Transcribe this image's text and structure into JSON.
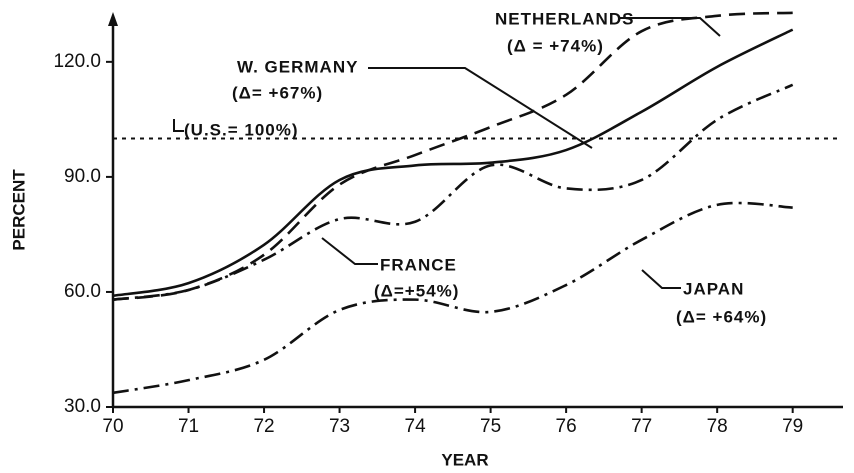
{
  "chart_data": {
    "type": "line",
    "x_label": "YEAR",
    "y_label": "PERCENT",
    "x": [
      70,
      71,
      72,
      73,
      74,
      75,
      76,
      77,
      78,
      79
    ],
    "series": [
      {
        "name": "W. GERMANY",
        "color": "#111111",
        "dash": "solid",
        "values": [
          59,
          62.3,
          72.3,
          89.2,
          93,
          93.7,
          97,
          107,
          118.7,
          128.4
        ]
      },
      {
        "name": "NETHERLANDS",
        "color": "#111111",
        "dash": "dashed",
        "values": [
          58,
          60.5,
          69.7,
          88,
          95.7,
          103,
          111.4,
          128,
          132,
          132.8
        ]
      },
      {
        "name": "FRANCE",
        "color": "#111111",
        "dash": "dashdot",
        "values": [
          58,
          60.5,
          68.4,
          79,
          78.3,
          93,
          87,
          89.2,
          104.9,
          114
        ]
      },
      {
        "name": "JAPAN",
        "color": "#111111",
        "dash": "dashdot",
        "values": [
          33.7,
          37,
          42.3,
          55.3,
          58,
          54.8,
          61.8,
          73.6,
          82.7,
          82
        ]
      },
      {
        "name": "U.S.",
        "color": "#111111",
        "dash": "dotted",
        "values": [
          100,
          100,
          100,
          100,
          100,
          100,
          100,
          100,
          100,
          100
        ]
      }
    ],
    "annotations": [
      {
        "lines": [
          "NETHERLANDS",
          "(Δ = +74%)"
        ]
      },
      {
        "lines": [
          "W.  GERMANY",
          "(Δ= +67%)"
        ]
      },
      {
        "lines": [
          "(U.S.= 100%)"
        ]
      },
      {
        "lines": [
          "FRANCE",
          "(Δ=+54%)"
        ]
      },
      {
        "lines": [
          "JAPAN",
          "(Δ= +64%)"
        ]
      }
    ],
    "xlim": [
      70,
      79.6
    ],
    "ylim": [
      30,
      133
    ],
    "xticks": [
      70,
      71,
      72,
      73,
      74,
      75,
      76,
      77,
      78,
      79
    ],
    "yticks": [
      {
        "value": 30,
        "label": "30.0"
      },
      {
        "value": 60,
        "label": "60.0"
      },
      {
        "value": 90,
        "label": "90.0"
      },
      {
        "value": 120,
        "label": "120.0"
      }
    ],
    "grid": false
  }
}
